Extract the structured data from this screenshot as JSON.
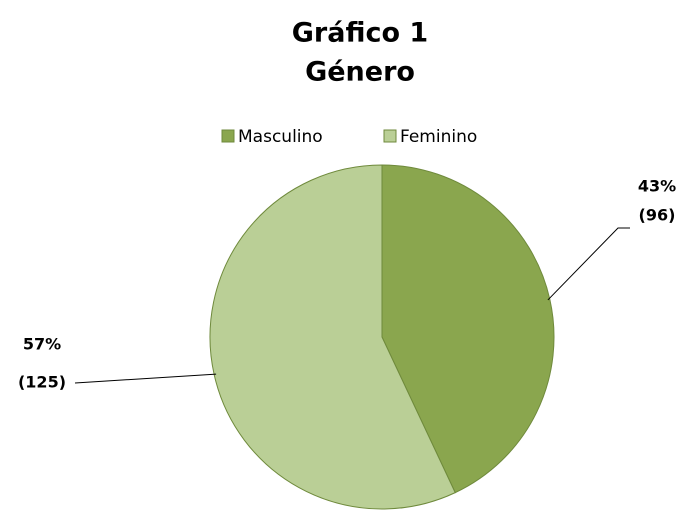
{
  "chart_data": {
    "type": "pie",
    "title": [
      "Gráfico 1",
      "Género"
    ],
    "categories": [
      "Masculino",
      "Feminino"
    ],
    "values": [
      43,
      57
    ],
    "value_labels": [
      "43%",
      "57%"
    ],
    "count_labels": [
      "(96)",
      "(125)"
    ],
    "colors": [
      "#8aa64e",
      "#bacf96"
    ],
    "legend": "top"
  }
}
